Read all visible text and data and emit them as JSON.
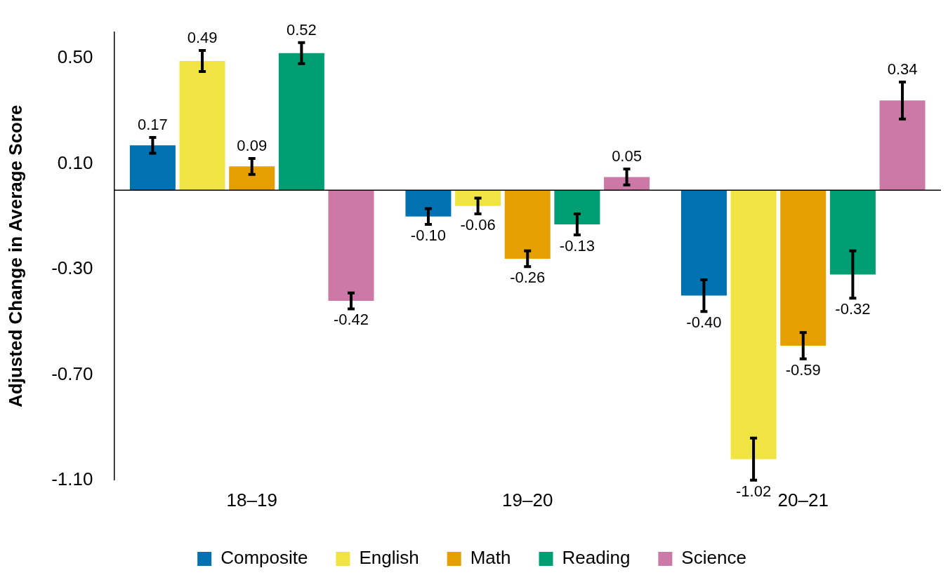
{
  "chart_data": {
    "type": "bar",
    "ylabel": "Adjusted Change in Average Score",
    "categories": [
      "18–19",
      "19–20",
      "20–21"
    ],
    "series": [
      {
        "name": "Composite",
        "color": "#0072b2",
        "values": [
          0.17,
          -0.1,
          -0.4
        ],
        "errors": [
          0.03,
          0.03,
          0.06
        ],
        "value_labels": [
          "0.17",
          "-0.10",
          "-0.40"
        ]
      },
      {
        "name": "English",
        "color": "#f0e442",
        "values": [
          0.49,
          -0.06,
          -1.02
        ],
        "errors": [
          0.04,
          0.03,
          0.08
        ],
        "value_labels": [
          "0.49",
          "-0.06",
          "-1.02"
        ]
      },
      {
        "name": "Math",
        "color": "#e69f00",
        "values": [
          0.09,
          -0.26,
          -0.59
        ],
        "errors": [
          0.03,
          0.03,
          0.05
        ],
        "value_labels": [
          "0.09",
          "-0.26",
          "-0.59"
        ]
      },
      {
        "name": "Reading",
        "color": "#009e73",
        "values": [
          0.52,
          -0.13,
          -0.32
        ],
        "errors": [
          0.04,
          0.04,
          0.09
        ],
        "value_labels": [
          "0.52",
          "-0.13",
          "-0.32"
        ]
      },
      {
        "name": "Science",
        "color": "#cc79a7",
        "values": [
          -0.42,
          0.05,
          0.34
        ],
        "errors": [
          0.03,
          0.03,
          0.07
        ],
        "value_labels": [
          "-0.42",
          "0.05",
          "0.34"
        ]
      }
    ],
    "ylim": [
      -1.1,
      0.6
    ],
    "yticks": [
      {
        "value": 0.5,
        "label": "0.50"
      },
      {
        "value": 0.1,
        "label": "0.10"
      },
      {
        "value": -0.3,
        "label": "-0.30"
      },
      {
        "value": -0.7,
        "label": "-0.70"
      },
      {
        "value": -1.1,
        "label": "-1.10"
      }
    ],
    "grid": false,
    "legend": "bottom"
  }
}
